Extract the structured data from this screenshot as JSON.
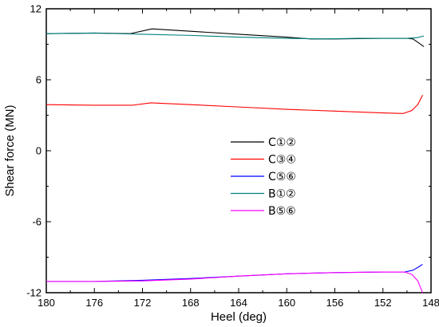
{
  "chart_data": {
    "type": "line",
    "title": "",
    "xlabel": "Heel (deg)",
    "ylabel": "Shear force (MN)",
    "xlim": [
      180,
      148
    ],
    "ylim": [
      -12,
      12
    ],
    "x_reversed": true,
    "xticks": [
      180,
      176,
      172,
      168,
      164,
      160,
      156,
      152,
      148
    ],
    "yticks": [
      12,
      6,
      0,
      -6,
      -12
    ],
    "grid": false,
    "legend_position": "center",
    "series": [
      {
        "name": "C①②",
        "color": "#000000",
        "points": [
          [
            180,
            9.9
          ],
          [
            176,
            9.95
          ],
          [
            173,
            9.9
          ],
          [
            171.2,
            10.3
          ],
          [
            168,
            10.1
          ],
          [
            164,
            9.85
          ],
          [
            160,
            9.6
          ],
          [
            158,
            9.45
          ],
          [
            156,
            9.45
          ],
          [
            152,
            9.5
          ],
          [
            150,
            9.5
          ],
          [
            149.5,
            9.45
          ],
          [
            149,
            9.1
          ],
          [
            148.6,
            8.8
          ]
        ]
      },
      {
        "name": "C③④",
        "color": "#ff0000",
        "points": [
          [
            180,
            3.9
          ],
          [
            176,
            3.85
          ],
          [
            172.8,
            3.85
          ],
          [
            171.3,
            4.05
          ],
          [
            168,
            3.9
          ],
          [
            164,
            3.7
          ],
          [
            160,
            3.5
          ],
          [
            156,
            3.35
          ],
          [
            152,
            3.2
          ],
          [
            150.3,
            3.15
          ],
          [
            149.6,
            3.4
          ],
          [
            149.1,
            3.9
          ],
          [
            148.7,
            4.7
          ]
        ]
      },
      {
        "name": "C⑤⑥",
        "color": "#0000ff",
        "points": [
          [
            180,
            -11.05
          ],
          [
            176,
            -11.05
          ],
          [
            172,
            -10.95
          ],
          [
            168,
            -10.8
          ],
          [
            164,
            -10.6
          ],
          [
            160,
            -10.4
          ],
          [
            156,
            -10.3
          ],
          [
            152,
            -10.25
          ],
          [
            150.2,
            -10.25
          ],
          [
            149.5,
            -10.1
          ],
          [
            149,
            -9.8
          ],
          [
            148.7,
            -9.6
          ]
        ]
      },
      {
        "name": "B①②",
        "color": "#008080",
        "points": [
          [
            180,
            9.9
          ],
          [
            176,
            9.95
          ],
          [
            172,
            9.85
          ],
          [
            168,
            9.75
          ],
          [
            164,
            9.6
          ],
          [
            160,
            9.5
          ],
          [
            157,
            9.45
          ],
          [
            154,
            9.5
          ],
          [
            151,
            9.5
          ],
          [
            150,
            9.5
          ],
          [
            149.2,
            9.55
          ],
          [
            148.6,
            9.7
          ]
        ]
      },
      {
        "name": "B⑤⑥",
        "color": "#ff00ff",
        "points": [
          [
            180,
            -11.05
          ],
          [
            176,
            -11.05
          ],
          [
            172,
            -11.0
          ],
          [
            168,
            -10.85
          ],
          [
            164,
            -10.6
          ],
          [
            160,
            -10.4
          ],
          [
            156,
            -10.3
          ],
          [
            152,
            -10.25
          ],
          [
            150.2,
            -10.25
          ],
          [
            149.6,
            -10.45
          ],
          [
            149.1,
            -11.0
          ],
          [
            148.7,
            -12.0
          ]
        ]
      }
    ]
  }
}
